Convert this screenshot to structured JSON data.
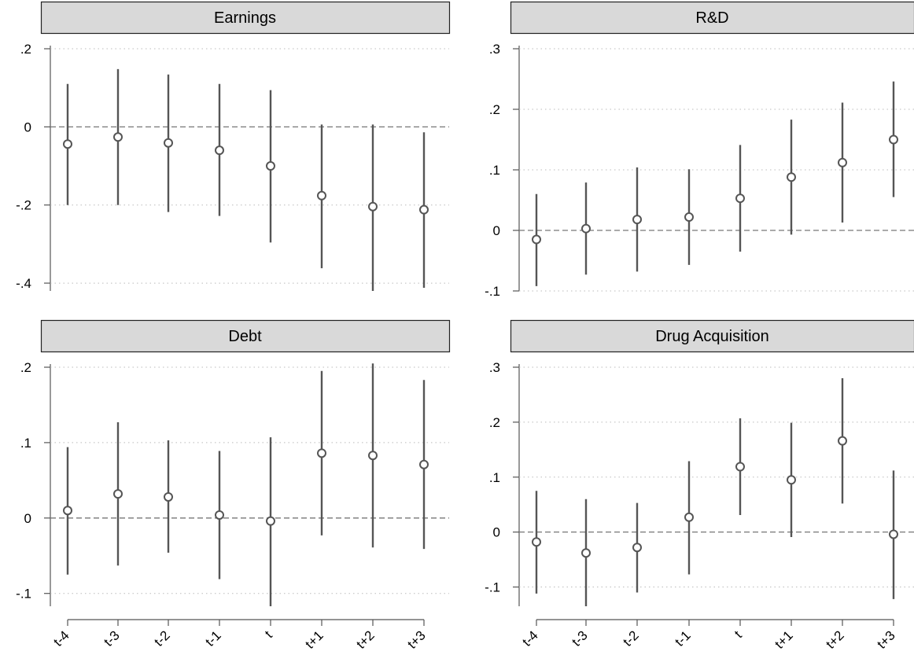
{
  "chart_data": [
    {
      "type": "scatter",
      "title": "Earnings",
      "categories": [
        "t-4",
        "t-3",
        "t-2",
        "t-1",
        "t",
        "t+1",
        "t+2",
        "t+3"
      ],
      "values": [
        -0.044,
        -0.026,
        -0.041,
        -0.06,
        -0.1,
        -0.176,
        -0.204,
        -0.212
      ],
      "ci_lower": [
        -0.2,
        -0.2,
        -0.218,
        -0.228,
        -0.296,
        -0.362,
        -0.42,
        -0.412
      ],
      "ci_upper": [
        0.11,
        0.148,
        0.134,
        0.11,
        0.094,
        0.006,
        0.006,
        -0.014
      ],
      "ylim": [
        -0.42,
        0.2
      ],
      "yticks": [
        0.2,
        0,
        -0.2,
        -0.4
      ],
      "ytick_labels": [
        ".2",
        "0",
        "-.2",
        "-.4"
      ],
      "reference_line": 0,
      "grid": true,
      "show_xticks": false
    },
    {
      "type": "scatter",
      "title": "R&D",
      "categories": [
        "t-4",
        "t-3",
        "t-2",
        "t-1",
        "t",
        "t+1",
        "t+2",
        "t+3"
      ],
      "values": [
        -0.015,
        0.003,
        0.018,
        0.022,
        0.053,
        0.088,
        0.112,
        0.15
      ],
      "ci_lower": [
        -0.092,
        -0.073,
        -0.068,
        -0.057,
        -0.035,
        -0.007,
        0.013,
        0.055
      ],
      "ci_upper": [
        0.06,
        0.079,
        0.104,
        0.101,
        0.141,
        0.183,
        0.211,
        0.246
      ],
      "ylim": [
        -0.1,
        0.3
      ],
      "yticks": [
        0.3,
        0.2,
        0.1,
        0,
        -0.1
      ],
      "ytick_labels": [
        ".3",
        ".2",
        ".1",
        "0",
        "-.1"
      ],
      "reference_line": 0,
      "grid": true,
      "show_xticks": false
    },
    {
      "type": "scatter",
      "title": "Debt",
      "categories": [
        "t-4",
        "t-3",
        "t-2",
        "t-1",
        "t",
        "t+1",
        "t+2",
        "t+3"
      ],
      "values": [
        0.01,
        0.032,
        0.028,
        0.004,
        -0.004,
        0.086,
        0.083,
        0.071
      ],
      "ci_lower": [
        -0.075,
        -0.063,
        -0.046,
        -0.081,
        -0.117,
        -0.023,
        -0.039,
        -0.041
      ],
      "ci_upper": [
        0.094,
        0.127,
        0.103,
        0.089,
        0.107,
        0.195,
        0.205,
        0.183
      ],
      "ylim": [
        -0.117,
        0.2
      ],
      "yticks": [
        0.2,
        0.1,
        0,
        -0.1
      ],
      "ytick_labels": [
        ".2",
        ".1",
        "0",
        "-.1"
      ],
      "reference_line": 0,
      "grid": true,
      "show_xticks": true
    },
    {
      "type": "scatter",
      "title": "Drug Acquisition",
      "categories": [
        "t-4",
        "t-3",
        "t-2",
        "t-1",
        "t",
        "t+1",
        "t+2",
        "t+3"
      ],
      "values": [
        -0.018,
        -0.038,
        -0.028,
        0.027,
        0.119,
        0.095,
        0.166,
        -0.004
      ],
      "ci_lower": [
        -0.112,
        -0.135,
        -0.11,
        -0.077,
        0.031,
        -0.009,
        0.052,
        -0.122
      ],
      "ci_upper": [
        0.075,
        0.06,
        0.053,
        0.129,
        0.207,
        0.199,
        0.28,
        0.112
      ],
      "ylim": [
        -0.135,
        0.3
      ],
      "yticks": [
        0.3,
        0.2,
        0.1,
        0,
        -0.1
      ],
      "ytick_labels": [
        ".3",
        ".2",
        ".1",
        "0",
        "-.1"
      ],
      "reference_line": 0,
      "grid": true,
      "show_xticks": true
    }
  ],
  "colors": {
    "marker": "#555555",
    "ci_line": "#555555",
    "axis": "#555555",
    "grid": "#bbbbbb",
    "zero_line": "#777777",
    "title_bar_fill": "#d9d9d9",
    "title_bar_stroke": "#222222"
  }
}
